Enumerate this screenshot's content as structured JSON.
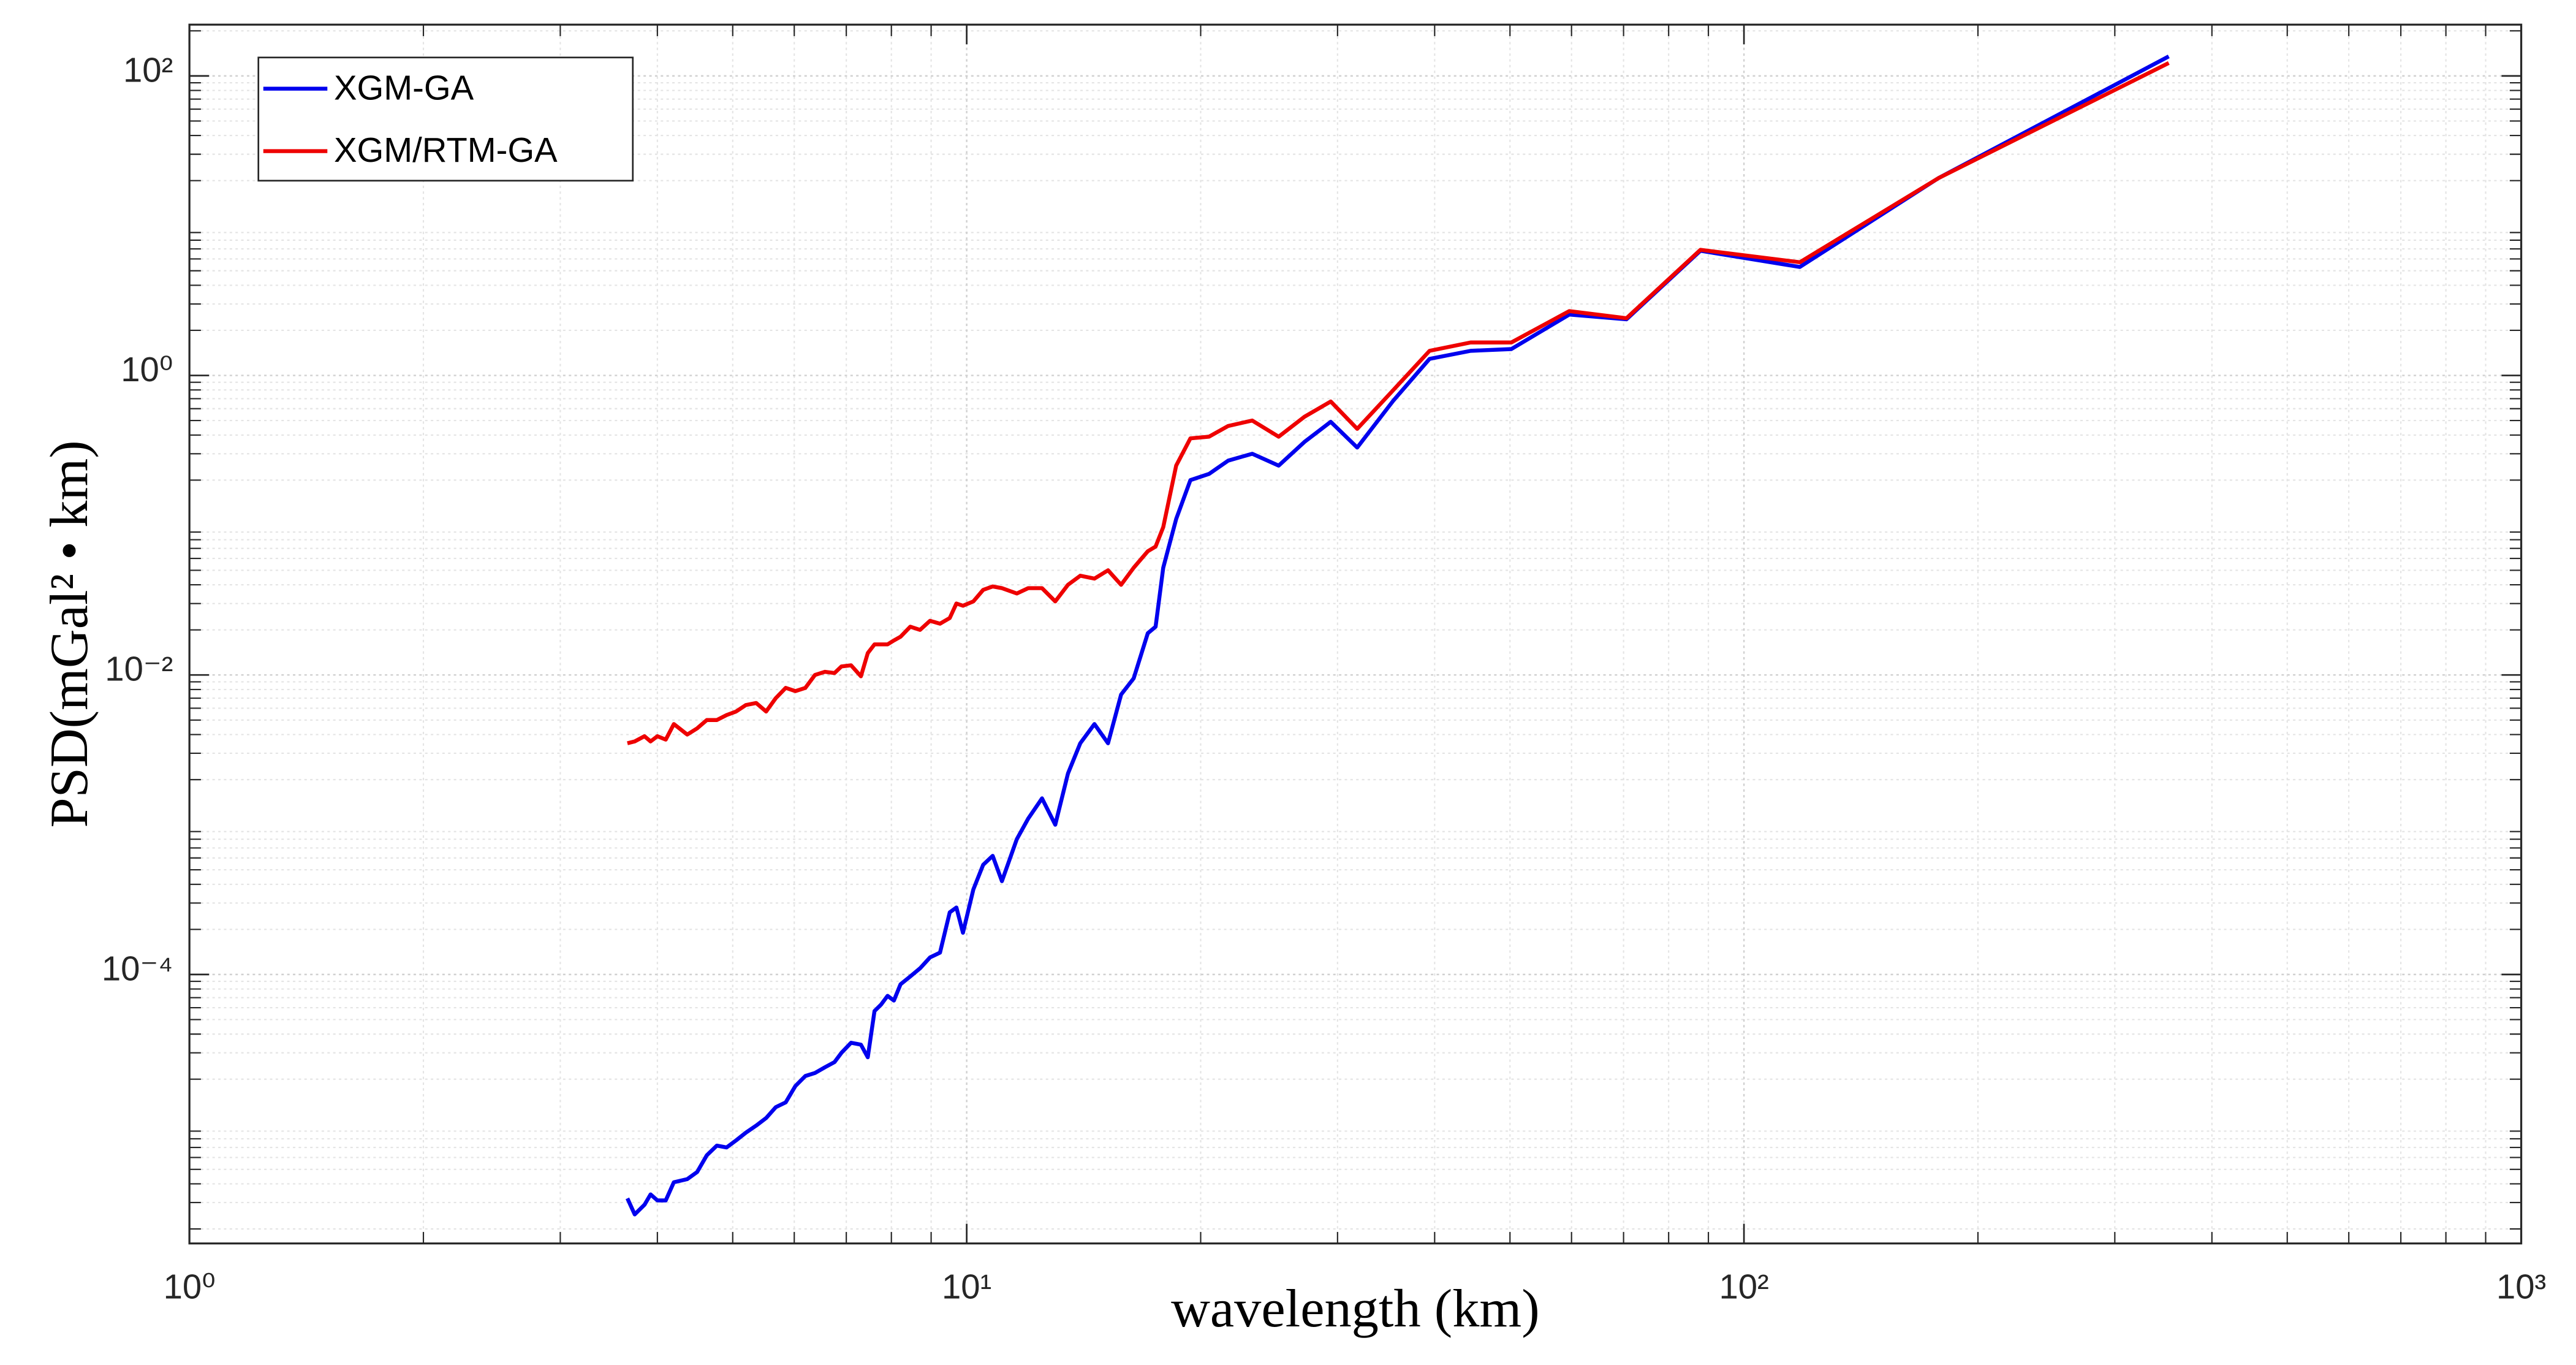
{
  "chart_data": {
    "type": "line",
    "x_label": "wavelength (km)",
    "y_label": "PSD(mGal² • km)",
    "x_scale": "log",
    "y_scale": "log",
    "grid": true,
    "minor_grid": true,
    "legend_position": "upper-left",
    "xlim": [
      1,
      1000
    ],
    "ylim": [
      1.6e-06,
      220
    ],
    "xticks": [
      {
        "value": 1,
        "label": "10⁰"
      },
      {
        "value": 10,
        "label": "10¹"
      },
      {
        "value": 100,
        "label": "10²"
      },
      {
        "value": 1000,
        "label": "10³"
      }
    ],
    "yticks": [
      {
        "value": 0.0001,
        "label": "10⁻⁴"
      },
      {
        "value": 0.01,
        "label": "10⁻²"
      },
      {
        "value": 1,
        "label": "10⁰"
      },
      {
        "value": 100,
        "label": "10²"
      }
    ],
    "x": [
      3.66,
      3.74,
      3.85,
      3.92,
      4.0,
      4.1,
      4.2,
      4.37,
      4.5,
      4.63,
      4.77,
      4.91,
      5.05,
      5.2,
      5.36,
      5.52,
      5.68,
      5.85,
      6.02,
      6.2,
      6.38,
      6.57,
      6.76,
      6.9,
      7.1,
      7.31,
      7.46,
      7.61,
      7.76,
      7.91,
      8.06,
      8.22,
      8.46,
      8.71,
      8.97,
      9.24,
      9.51,
      9.7,
      9.89,
      10.2,
      10.5,
      10.8,
      11.1,
      11.6,
      12.0,
      12.5,
      13.0,
      13.5,
      14.0,
      14.6,
      15.2,
      15.8,
      16.4,
      17.1,
      17.5,
      17.9,
      18.6,
      19.4,
      20.5,
      21.7,
      23.3,
      25.2,
      27.2,
      29.4,
      31.8,
      35.4,
      39.4,
      44.5,
      50.2,
      59.6,
      70.6,
      87.9,
      118,
      178,
      352
    ],
    "series": [
      {
        "name": "XGM-GA",
        "color": "#0000ee",
        "values": [
          3.2e-06,
          2.5e-06,
          2.9e-06,
          3.4e-06,
          3.1e-06,
          3.1e-06,
          4.1e-06,
          4.3e-06,
          4.8e-06,
          6.2e-06,
          7.2e-06,
          7e-06,
          7.8e-06,
          8.8e-06,
          9.8e-06,
          1.1e-05,
          1.3e-05,
          1.4e-05,
          1.8e-05,
          2.1e-05,
          2.2e-05,
          2.4e-05,
          2.6e-05,
          3e-05,
          3.5e-05,
          3.4e-05,
          2.8e-05,
          5.7e-05,
          6.3e-05,
          7.2e-05,
          6.7e-05,
          8.6e-05,
          9.7e-05,
          0.00011,
          0.00013,
          0.00014,
          0.00026,
          0.00028,
          0.00019,
          0.00037,
          0.00054,
          0.00062,
          0.00042,
          0.0008,
          0.0011,
          0.0015,
          0.001,
          0.0022,
          0.0035,
          0.0047,
          0.0035,
          0.0074,
          0.0095,
          0.019,
          0.021,
          0.052,
          0.11,
          0.2,
          0.22,
          0.27,
          0.3,
          0.25,
          0.36,
          0.49,
          0.33,
          0.68,
          1.29,
          1.46,
          1.5,
          2.55,
          2.37,
          6.8,
          5.3,
          20.8,
          135
        ]
      },
      {
        "name": "XGM/RTM-GA",
        "color": "#ee0000",
        "values": [
          0.0035,
          0.0036,
          0.0039,
          0.0036,
          0.0039,
          0.0037,
          0.0047,
          0.004,
          0.0044,
          0.005,
          0.005,
          0.0054,
          0.0057,
          0.0063,
          0.0065,
          0.0057,
          0.007,
          0.0082,
          0.0078,
          0.0082,
          0.01,
          0.0105,
          0.0103,
          0.0114,
          0.0116,
          0.0098,
          0.014,
          0.016,
          0.016,
          0.016,
          0.017,
          0.018,
          0.021,
          0.02,
          0.023,
          0.022,
          0.024,
          0.03,
          0.029,
          0.031,
          0.037,
          0.039,
          0.038,
          0.035,
          0.038,
          0.038,
          0.031,
          0.04,
          0.046,
          0.044,
          0.05,
          0.04,
          0.052,
          0.067,
          0.072,
          0.097,
          0.25,
          0.38,
          0.39,
          0.46,
          0.5,
          0.39,
          0.53,
          0.67,
          0.44,
          0.8,
          1.46,
          1.66,
          1.66,
          2.69,
          2.41,
          6.9,
          5.7,
          20.8,
          122
        ]
      }
    ]
  }
}
